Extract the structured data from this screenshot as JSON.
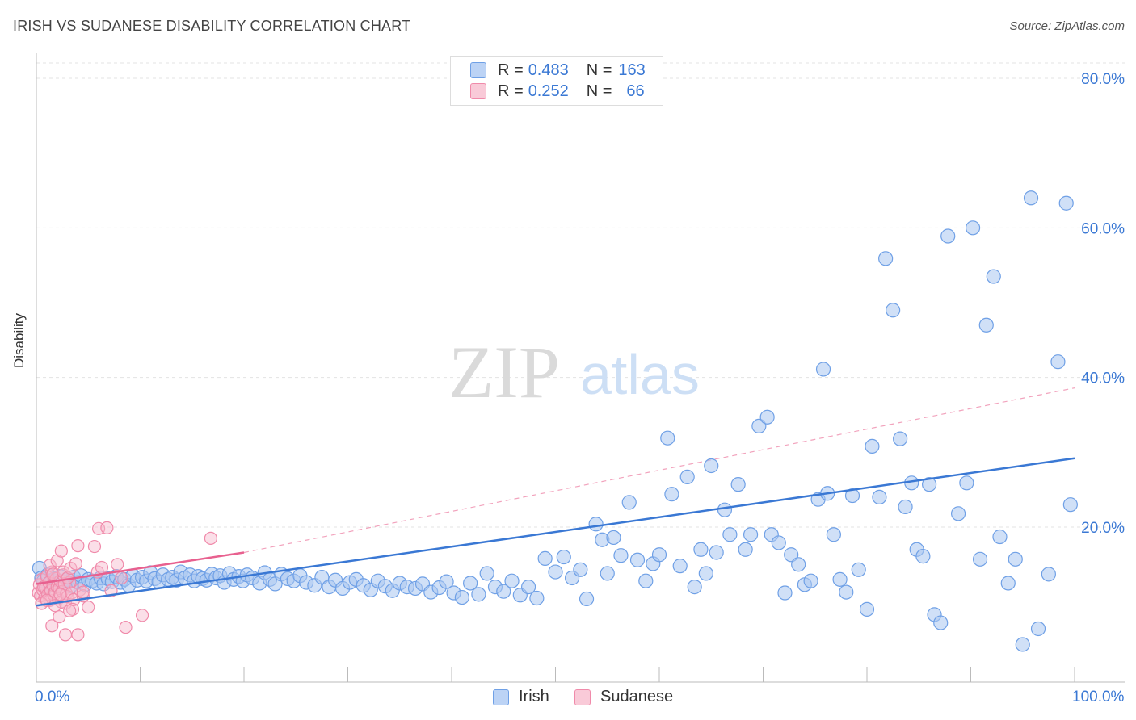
{
  "header": {
    "title": "IRISH VS SUDANESE DISABILITY CORRELATION CHART",
    "source": "Source: ZipAtlas.com"
  },
  "watermark": {
    "zip": "ZIP",
    "atlas": "atlas"
  },
  "legend": {
    "rows": [
      {
        "r_label": "R = ",
        "r_value": "0.483",
        "n_label": "N = ",
        "n_value": "163",
        "color": "#6fa0e6"
      },
      {
        "r_label": "R = ",
        "r_value": "0.252",
        "n_label": "N = ",
        "n_value": "66",
        "color": "#f08aaa"
      }
    ]
  },
  "chart_data": {
    "type": "scatter",
    "title": "IRISH VS SUDANESE DISABILITY CORRELATION CHART",
    "xlabel": "",
    "ylabel": "Disability",
    "xlim": [
      0,
      100
    ],
    "ylim": [
      0,
      80
    ],
    "x_tick_labels": [
      "0.0%",
      "100.0%"
    ],
    "y_tick_labels": [
      "20.0%",
      "40.0%",
      "60.0%",
      "80.0%"
    ],
    "y_ticks": [
      20,
      40,
      60,
      80
    ],
    "grid": "horizontal dashed",
    "legend_position": "top-center and bottom",
    "colors": {
      "irish": "#3a78d4",
      "irish_fill": "#a9c6f0",
      "sudanese": "#e8608f",
      "sudanese_fill": "#f6b9cc"
    },
    "series": [
      {
        "name": "Irish",
        "r": 0.483,
        "n": 163,
        "trend": {
          "x": [
            0,
            100
          ],
          "y": [
            9.5,
            29.2
          ]
        },
        "points": [
          [
            0.3,
            14.5
          ],
          [
            0.5,
            13.2
          ],
          [
            0.7,
            12.8
          ],
          [
            0.9,
            11.9
          ],
          [
            1.1,
            13.6
          ],
          [
            1.3,
            12.4
          ],
          [
            1.5,
            12.9
          ],
          [
            1.8,
            13.1
          ],
          [
            2.0,
            12.2
          ],
          [
            2.3,
            13.4
          ],
          [
            2.6,
            12.7
          ],
          [
            3.0,
            13.0
          ],
          [
            3.3,
            12.1
          ],
          [
            3.6,
            13.3
          ],
          [
            4.0,
            12.6
          ],
          [
            4.3,
            13.5
          ],
          [
            4.7,
            12.3
          ],
          [
            5.0,
            13.0
          ],
          [
            5.4,
            12.8
          ],
          [
            5.8,
            12.5
          ],
          [
            6.2,
            13.2
          ],
          [
            6.5,
            12.4
          ],
          [
            6.9,
            13.1
          ],
          [
            7.3,
            12.7
          ],
          [
            7.7,
            13.4
          ],
          [
            8.1,
            12.6
          ],
          [
            8.5,
            13.0
          ],
          [
            8.9,
            12.2
          ],
          [
            9.3,
            13.5
          ],
          [
            9.7,
            12.9
          ],
          [
            10.2,
            13.3
          ],
          [
            10.6,
            12.8
          ],
          [
            11.0,
            13.9
          ],
          [
            11.4,
            13.1
          ],
          [
            11.8,
            12.7
          ],
          [
            12.2,
            13.6
          ],
          [
            12.7,
            13.0
          ],
          [
            13.1,
            13.3
          ],
          [
            13.5,
            12.9
          ],
          [
            13.9,
            14.0
          ],
          [
            14.3,
            13.2
          ],
          [
            14.8,
            13.6
          ],
          [
            15.2,
            12.8
          ],
          [
            15.6,
            13.4
          ],
          [
            16.0,
            13.1
          ],
          [
            16.4,
            12.9
          ],
          [
            16.9,
            13.7
          ],
          [
            17.3,
            13.2
          ],
          [
            17.7,
            13.5
          ],
          [
            18.1,
            12.6
          ],
          [
            18.6,
            13.8
          ],
          [
            19.0,
            13.0
          ],
          [
            19.5,
            13.4
          ],
          [
            19.9,
            12.8
          ],
          [
            20.3,
            13.6
          ],
          [
            20.8,
            13.2
          ],
          [
            21.5,
            12.5
          ],
          [
            22.0,
            13.9
          ],
          [
            22.5,
            13.0
          ],
          [
            23.0,
            12.4
          ],
          [
            23.6,
            13.7
          ],
          [
            24.2,
            13.1
          ],
          [
            24.8,
            12.8
          ],
          [
            25.4,
            13.5
          ],
          [
            26.0,
            12.6
          ],
          [
            26.8,
            12.2
          ],
          [
            27.5,
            13.3
          ],
          [
            28.2,
            12.0
          ],
          [
            28.8,
            12.9
          ],
          [
            29.5,
            11.8
          ],
          [
            30.2,
            12.6
          ],
          [
            30.8,
            13.0
          ],
          [
            31.5,
            12.2
          ],
          [
            32.2,
            11.6
          ],
          [
            32.9,
            12.8
          ],
          [
            33.6,
            12.1
          ],
          [
            34.3,
            11.5
          ],
          [
            35.0,
            12.5
          ],
          [
            35.7,
            12.0
          ],
          [
            36.5,
            11.8
          ],
          [
            37.2,
            12.4
          ],
          [
            38.0,
            11.3
          ],
          [
            38.8,
            11.9
          ],
          [
            39.5,
            12.7
          ],
          [
            40.2,
            11.2
          ],
          [
            41.0,
            10.6
          ],
          [
            41.8,
            12.5
          ],
          [
            42.6,
            11.0
          ],
          [
            43.4,
            13.8
          ],
          [
            44.2,
            12.0
          ],
          [
            45.0,
            11.4
          ],
          [
            45.8,
            12.8
          ],
          [
            46.6,
            10.9
          ],
          [
            47.4,
            12.0
          ],
          [
            48.2,
            10.5
          ],
          [
            49.0,
            15.8
          ],
          [
            50.0,
            14.0
          ],
          [
            50.8,
            16.0
          ],
          [
            51.6,
            13.2
          ],
          [
            52.4,
            14.3
          ],
          [
            53.0,
            10.4
          ],
          [
            53.9,
            20.4
          ],
          [
            54.5,
            18.3
          ],
          [
            55.0,
            13.8
          ],
          [
            55.6,
            18.6
          ],
          [
            56.3,
            16.2
          ],
          [
            57.1,
            23.3
          ],
          [
            57.9,
            15.6
          ],
          [
            58.7,
            12.8
          ],
          [
            59.4,
            15.1
          ],
          [
            60.0,
            16.3
          ],
          [
            60.8,
            31.9
          ],
          [
            61.2,
            24.4
          ],
          [
            62.0,
            14.8
          ],
          [
            62.7,
            26.7
          ],
          [
            63.4,
            12.0
          ],
          [
            64.0,
            17.0
          ],
          [
            64.5,
            13.8
          ],
          [
            65.0,
            28.2
          ],
          [
            65.5,
            16.6
          ],
          [
            66.3,
            22.3
          ],
          [
            66.8,
            19.0
          ],
          [
            67.6,
            25.7
          ],
          [
            68.3,
            17.0
          ],
          [
            68.8,
            19.0
          ],
          [
            69.6,
            33.5
          ],
          [
            70.4,
            34.7
          ],
          [
            70.8,
            19.0
          ],
          [
            71.5,
            17.9
          ],
          [
            72.1,
            11.2
          ],
          [
            72.7,
            16.3
          ],
          [
            73.4,
            15.0
          ],
          [
            74.0,
            12.3
          ],
          [
            74.6,
            12.8
          ],
          [
            75.3,
            23.7
          ],
          [
            75.8,
            41.1
          ],
          [
            76.2,
            24.5
          ],
          [
            76.8,
            19.0
          ],
          [
            77.4,
            13.0
          ],
          [
            78.0,
            11.3
          ],
          [
            78.6,
            24.2
          ],
          [
            79.2,
            14.3
          ],
          [
            80.0,
            9.0
          ],
          [
            80.5,
            30.8
          ],
          [
            81.2,
            24.0
          ],
          [
            81.8,
            55.9
          ],
          [
            82.5,
            49.0
          ],
          [
            83.2,
            31.8
          ],
          [
            83.7,
            22.7
          ],
          [
            84.3,
            25.9
          ],
          [
            84.8,
            17.0
          ],
          [
            85.4,
            16.1
          ],
          [
            86.0,
            25.7
          ],
          [
            86.5,
            8.3
          ],
          [
            87.1,
            7.2
          ],
          [
            87.8,
            58.9
          ],
          [
            88.8,
            21.8
          ],
          [
            89.6,
            25.9
          ],
          [
            90.2,
            60.0
          ],
          [
            90.9,
            15.7
          ],
          [
            91.5,
            47.0
          ],
          [
            92.2,
            53.5
          ],
          [
            92.8,
            18.7
          ],
          [
            93.6,
            12.5
          ],
          [
            94.3,
            15.7
          ],
          [
            95.0,
            4.3
          ],
          [
            95.8,
            64.0
          ],
          [
            96.5,
            6.4
          ],
          [
            97.5,
            13.7
          ],
          [
            98.4,
            42.1
          ],
          [
            99.2,
            63.3
          ],
          [
            99.6,
            23.0
          ]
        ]
      },
      {
        "name": "Sudanese",
        "r": 0.252,
        "n": 66,
        "trend": {
          "x": [
            0,
            20
          ],
          "y": [
            12.4,
            16.6
          ]
        },
        "trend_extended": {
          "x": [
            20,
            100
          ],
          "y": [
            16.6,
            38.6
          ]
        },
        "points": [
          [
            0.2,
            11.2
          ],
          [
            0.3,
            12.3
          ],
          [
            0.4,
            10.8
          ],
          [
            0.5,
            13.0
          ],
          [
            0.6,
            11.6
          ],
          [
            0.7,
            12.0
          ],
          [
            0.8,
            10.5
          ],
          [
            0.9,
            11.9
          ],
          [
            1.0,
            13.4
          ],
          [
            1.1,
            11.0
          ],
          [
            1.2,
            12.6
          ],
          [
            1.3,
            10.2
          ],
          [
            1.4,
            11.5
          ],
          [
            1.5,
            14.0
          ],
          [
            1.6,
            12.2
          ],
          [
            1.7,
            10.9
          ],
          [
            1.8,
            11.3
          ],
          [
            1.9,
            13.1
          ],
          [
            2.0,
            12.0
          ],
          [
            2.1,
            10.4
          ],
          [
            2.2,
            11.8
          ],
          [
            2.3,
            12.8
          ],
          [
            2.4,
            10.0
          ],
          [
            2.5,
            11.4
          ],
          [
            2.6,
            13.6
          ],
          [
            2.7,
            12.4
          ],
          [
            2.8,
            9.8
          ],
          [
            2.9,
            11.1
          ],
          [
            3.0,
            10.7
          ],
          [
            3.2,
            12.6
          ],
          [
            3.4,
            11.2
          ],
          [
            3.6,
            10.3
          ],
          [
            1.3,
            14.9
          ],
          [
            2.0,
            15.5
          ],
          [
            1.6,
            13.7
          ],
          [
            2.4,
            16.8
          ],
          [
            2.6,
            14.0
          ],
          [
            3.0,
            13.2
          ],
          [
            3.3,
            14.5
          ],
          [
            3.5,
            9.0
          ],
          [
            3.8,
            15.1
          ],
          [
            4.0,
            17.5
          ],
          [
            4.2,
            11.6
          ],
          [
            4.5,
            10.8
          ],
          [
            1.5,
            6.8
          ],
          [
            2.2,
            8.0
          ],
          [
            2.8,
            5.6
          ],
          [
            3.2,
            8.8
          ],
          [
            4.0,
            5.6
          ],
          [
            4.5,
            11.3
          ],
          [
            5.0,
            9.3
          ],
          [
            5.6,
            17.4
          ],
          [
            5.9,
            14.0
          ],
          [
            6.0,
            19.8
          ],
          [
            6.3,
            14.6
          ],
          [
            6.8,
            19.9
          ],
          [
            7.2,
            11.5
          ],
          [
            7.8,
            15.0
          ],
          [
            8.2,
            13.2
          ],
          [
            8.6,
            6.6
          ],
          [
            10.2,
            8.2
          ],
          [
            16.8,
            18.5
          ],
          [
            0.5,
            9.8
          ],
          [
            1.0,
            10.2
          ],
          [
            1.8,
            9.5
          ],
          [
            2.3,
            11.0
          ]
        ]
      }
    ]
  },
  "bottom_legend": {
    "items": [
      {
        "label": "Irish"
      },
      {
        "label": "Sudanese"
      }
    ]
  }
}
